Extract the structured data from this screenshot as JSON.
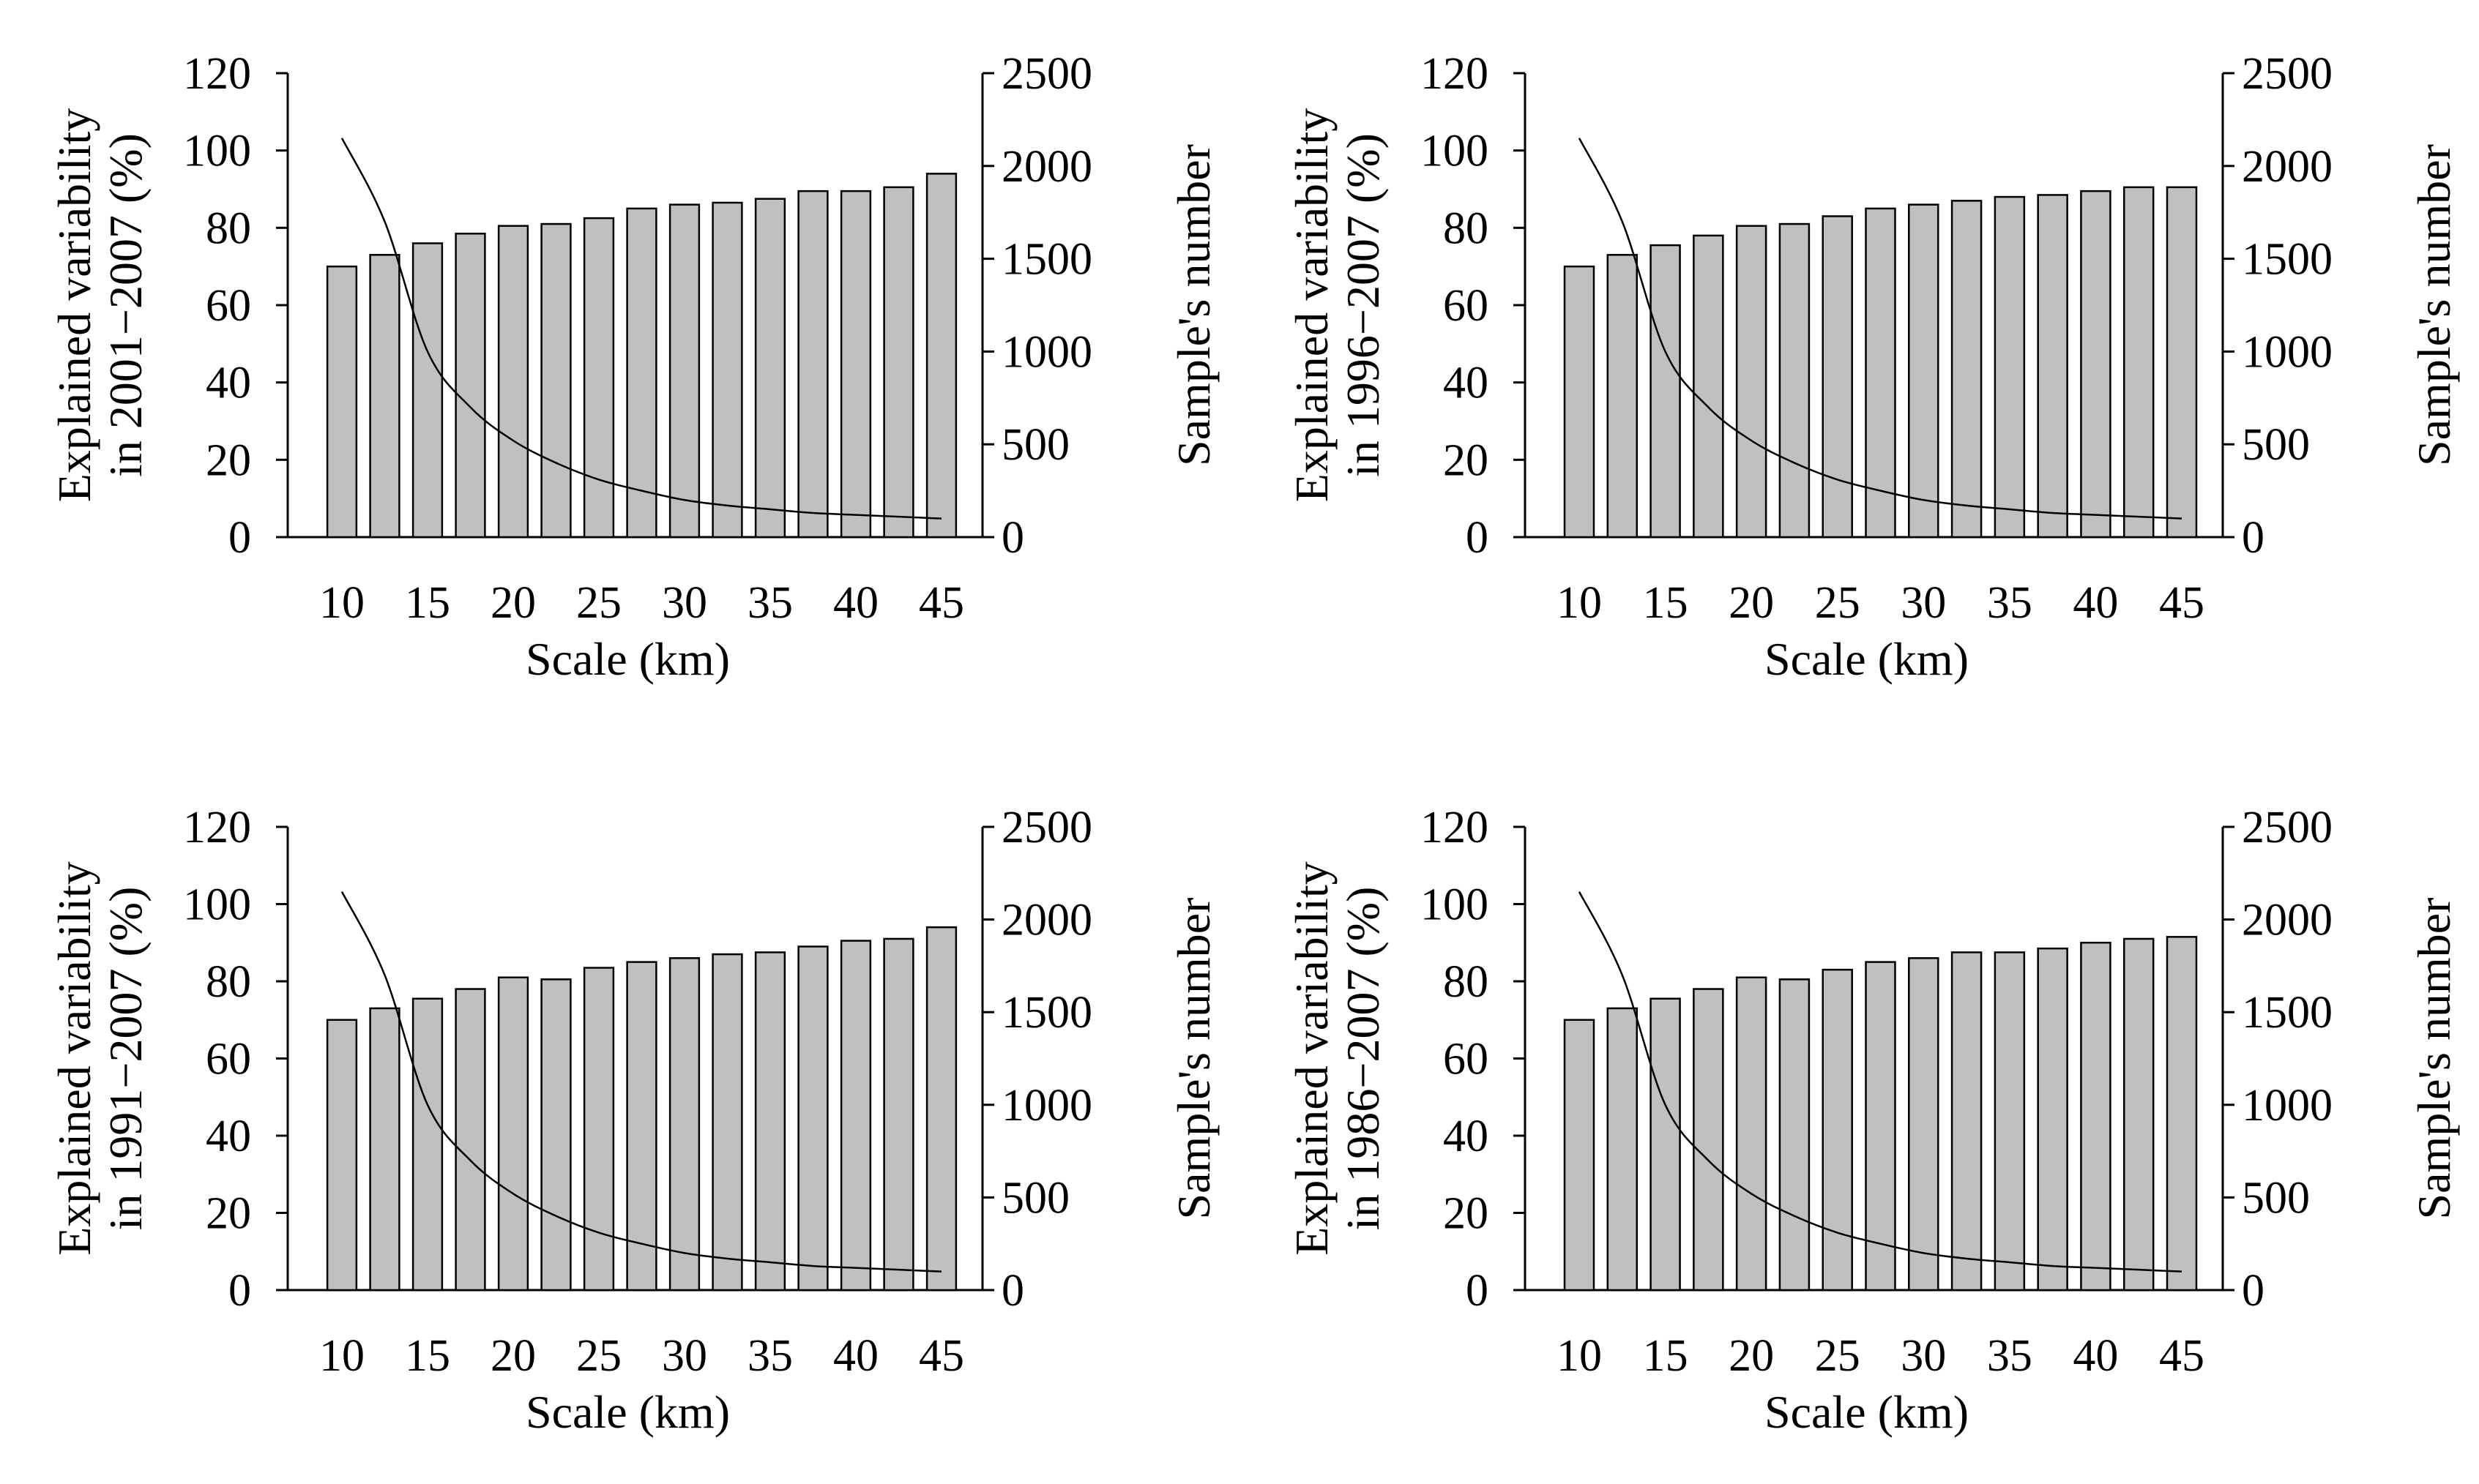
{
  "chart_data": [
    {
      "type": "bar+line",
      "panel": "top-left",
      "categories": [
        "10",
        "12.5",
        "15",
        "17.5",
        "20",
        "22.5",
        "25",
        "27.5",
        "30",
        "32.5",
        "35",
        "37.5",
        "40",
        "42.5",
        "45"
      ],
      "x_tick_labels": [
        "10",
        "15",
        "20",
        "25",
        "30",
        "35",
        "40",
        "45"
      ],
      "xlabel": "Scale (km)",
      "ylabel_lines": [
        "Explained variability",
        "in 2001−2007 (%)"
      ],
      "y2label": "Sample's number",
      "ylim": [
        0,
        120
      ],
      "yticks": [
        "0",
        "20",
        "40",
        "60",
        "80",
        "100",
        "120"
      ],
      "y2lim": [
        0,
        2500
      ],
      "y2ticks": [
        "0",
        "500",
        "1000",
        "1500",
        "2000",
        "2500"
      ],
      "series": [
        {
          "name": "Explained variability (%)",
          "axis": "left",
          "kind": "bar",
          "values": [
            70,
            73,
            76,
            78.5,
            80.5,
            81,
            82.5,
            85,
            86,
            86.5,
            87.5,
            89.5,
            89.5,
            90.5,
            94
          ]
        },
        {
          "name": "Sample's number",
          "axis": "right",
          "kind": "line",
          "values": [
            2150,
            1700,
            1000,
            700,
            520,
            400,
            310,
            250,
            200,
            170,
            150,
            130,
            120,
            110,
            100
          ]
        }
      ]
    },
    {
      "type": "bar+line",
      "panel": "top-right",
      "categories": [
        "10",
        "12.5",
        "15",
        "17.5",
        "20",
        "22.5",
        "25",
        "27.5",
        "30",
        "32.5",
        "35",
        "37.5",
        "40",
        "42.5",
        "45"
      ],
      "x_tick_labels": [
        "10",
        "15",
        "20",
        "25",
        "30",
        "35",
        "40",
        "45"
      ],
      "xlabel": "Scale (km)",
      "ylabel_lines": [
        "Explained variability",
        "in 1996−2007 (%)"
      ],
      "y2label": "Sample's number",
      "ylim": [
        0,
        120
      ],
      "yticks": [
        "0",
        "20",
        "40",
        "60",
        "80",
        "100",
        "120"
      ],
      "y2lim": [
        0,
        2500
      ],
      "y2ticks": [
        "0",
        "500",
        "1000",
        "1500",
        "2000",
        "2500"
      ],
      "series": [
        {
          "name": "Explained variability (%)",
          "axis": "left",
          "kind": "bar",
          "values": [
            70,
            73,
            75.5,
            78,
            80.5,
            81,
            83,
            85,
            86,
            87,
            88,
            88.5,
            89.5,
            90.5,
            90.5
          ]
        },
        {
          "name": "Sample's number",
          "axis": "right",
          "kind": "line",
          "values": [
            2150,
            1700,
            1000,
            700,
            520,
            400,
            310,
            250,
            200,
            170,
            150,
            130,
            120,
            110,
            100
          ]
        }
      ]
    },
    {
      "type": "bar+line",
      "panel": "bottom-left",
      "categories": [
        "10",
        "12.5",
        "15",
        "17.5",
        "20",
        "22.5",
        "25",
        "27.5",
        "30",
        "32.5",
        "35",
        "37.5",
        "40",
        "42.5",
        "45"
      ],
      "x_tick_labels": [
        "10",
        "15",
        "20",
        "25",
        "30",
        "35",
        "40",
        "45"
      ],
      "xlabel": "Scale (km)",
      "ylabel_lines": [
        "Explained variability",
        "in 1991−2007 (%)"
      ],
      "y2label": "Sample's number",
      "ylim": [
        0,
        120
      ],
      "yticks": [
        "0",
        "20",
        "40",
        "60",
        "80",
        "100",
        "120"
      ],
      "y2lim": [
        0,
        2500
      ],
      "y2ticks": [
        "0",
        "500",
        "1000",
        "1500",
        "2000",
        "2500"
      ],
      "series": [
        {
          "name": "Explained variability (%)",
          "axis": "left",
          "kind": "bar",
          "values": [
            70,
            73,
            75.5,
            78,
            81,
            80.5,
            83.5,
            85,
            86,
            87,
            87.5,
            89,
            90.5,
            91,
            94
          ]
        },
        {
          "name": "Sample's number",
          "axis": "right",
          "kind": "line",
          "values": [
            2150,
            1700,
            1000,
            700,
            520,
            400,
            310,
            250,
            200,
            170,
            150,
            130,
            120,
            110,
            100
          ]
        }
      ]
    },
    {
      "type": "bar+line",
      "panel": "bottom-right",
      "categories": [
        "10",
        "12.5",
        "15",
        "17.5",
        "20",
        "22.5",
        "25",
        "27.5",
        "30",
        "32.5",
        "35",
        "37.5",
        "40",
        "42.5",
        "45"
      ],
      "x_tick_labels": [
        "10",
        "15",
        "20",
        "25",
        "30",
        "35",
        "40",
        "45"
      ],
      "xlabel": "Scale (km)",
      "ylabel_lines": [
        "Explained variability",
        "in 1986−2007 (%)"
      ],
      "y2label": "Sample's number",
      "ylim": [
        0,
        120
      ],
      "yticks": [
        "0",
        "20",
        "40",
        "60",
        "80",
        "100",
        "120"
      ],
      "y2lim": [
        0,
        2500
      ],
      "y2ticks": [
        "0",
        "500",
        "1000",
        "1500",
        "2000",
        "2500"
      ],
      "series": [
        {
          "name": "Explained variability (%)",
          "axis": "left",
          "kind": "bar",
          "values": [
            70,
            73,
            75.5,
            78,
            81,
            80.5,
            83,
            85,
            86,
            87.5,
            87.5,
            88.5,
            90,
            91,
            91.5
          ]
        },
        {
          "name": "Sample's number",
          "axis": "right",
          "kind": "line",
          "values": [
            2150,
            1700,
            1000,
            700,
            520,
            400,
            310,
            250,
            200,
            170,
            150,
            130,
            120,
            110,
            100
          ]
        }
      ]
    }
  ]
}
